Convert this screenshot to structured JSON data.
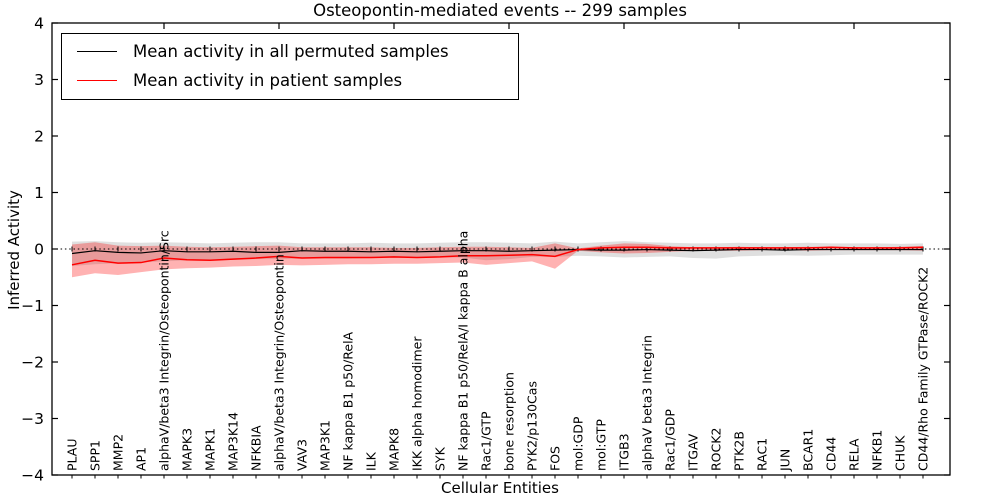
{
  "title": "Osteopontin-mediated events -- 299 samples",
  "axes": {
    "ylabel": "Inferred Activity",
    "xlabel": "Cellular Entities",
    "yticks": [
      4,
      3,
      2,
      1,
      0,
      -1,
      -2,
      -3,
      -4
    ],
    "ylim": [
      -4,
      4
    ],
    "zero_line_style": "dotted"
  },
  "legend": {
    "position": "upper-left",
    "items": [
      {
        "label": "Mean activity in all permuted samples",
        "color": "#000000"
      },
      {
        "label": "Mean activity in patient samples",
        "color": "#ff0000"
      }
    ]
  },
  "colors": {
    "permuted_line": "#000000",
    "patient_line": "#ff0000",
    "permuted_band": "#808080",
    "patient_band": "#ff0000",
    "axis": "#000000",
    "background": "#ffffff"
  },
  "chart_data": {
    "type": "line",
    "title": "Osteopontin-mediated events -- 299 samples",
    "xlabel": "Cellular Entities",
    "ylabel": "Inferred Activity",
    "ylim": [
      -4,
      4
    ],
    "grid": false,
    "legend_position": "upper-left",
    "categories": [
      "PLAU",
      "SPP1",
      "MMP2",
      "AP1",
      "alphaV/beta3 Integrin/Osteopontin/Src",
      "MAPK3",
      "MAPK1",
      "MAP3K14",
      "NFKBIA",
      "alphaV/beta3 Integrin/Osteopontin",
      "VAV3",
      "MAP3K1",
      "NF kappa B1 p50/RelA",
      "ILK",
      "MAPK8",
      "IKK alpha homodimer",
      "SYK",
      "NF kappa B1 p50/RelA/I kappa B alpha",
      "Rac1/GTP",
      "bone resorption",
      "PYK2/p130Cas",
      "FOS",
      "mol:GDP",
      "mol:GTP",
      "ITGB3",
      "alphaV beta3 Integrin",
      "Rac1/GDP",
      "ITGAV",
      "ROCK2",
      "PTK2B",
      "RAC1",
      "JUN",
      "BCAR1",
      "CD44",
      "RELA",
      "NFKB1",
      "CHUK",
      "CD44/Rho Family GTPase/ROCK2"
    ],
    "series": [
      {
        "name": "Mean activity in all permuted samples",
        "color": "#000000",
        "values": [
          -0.08,
          -0.03,
          -0.06,
          -0.07,
          -0.03,
          -0.05,
          -0.05,
          -0.04,
          -0.06,
          -0.06,
          -0.03,
          -0.04,
          -0.04,
          -0.05,
          -0.04,
          -0.05,
          -0.04,
          -0.03,
          -0.03,
          -0.04,
          -0.03,
          -0.02,
          -0.01,
          -0.02,
          -0.02,
          -0.01,
          -0.02,
          -0.03,
          -0.02,
          -0.01,
          -0.01,
          -0.02,
          -0.01,
          -0.01,
          -0.01,
          -0.01,
          -0.01,
          -0.01
        ]
      },
      {
        "name": "Mean activity in patient samples",
        "color": "#ff0000",
        "values": [
          -0.28,
          -0.2,
          -0.25,
          -0.24,
          -0.16,
          -0.19,
          -0.2,
          -0.18,
          -0.16,
          -0.13,
          -0.16,
          -0.15,
          -0.15,
          -0.15,
          -0.14,
          -0.15,
          -0.14,
          -0.12,
          -0.12,
          -0.11,
          -0.1,
          -0.13,
          -0.01,
          0.02,
          0.03,
          0.03,
          0.02,
          0.02,
          0.02,
          0.02,
          0.02,
          0.02,
          0.02,
          0.03,
          0.02,
          0.02,
          0.02,
          0.03
        ]
      }
    ],
    "bands": [
      {
        "name": "permuted-samples-band",
        "color": "#808080",
        "opacity": 0.25,
        "upper": [
          0.13,
          0.14,
          0.12,
          0.11,
          0.12,
          0.11,
          0.1,
          0.11,
          0.12,
          0.12,
          0.1,
          0.1,
          0.1,
          0.11,
          0.1,
          0.1,
          0.11,
          0.12,
          0.12,
          0.11,
          0.1,
          0.13,
          0.1,
          0.12,
          0.14,
          0.12,
          0.11,
          0.1,
          0.1,
          0.11,
          0.1,
          0.1,
          0.11,
          0.1,
          0.1,
          0.1,
          0.09,
          0.1
        ],
        "lower": [
          -0.3,
          -0.27,
          -0.25,
          -0.24,
          -0.22,
          -0.2,
          -0.2,
          -0.19,
          -0.18,
          -0.18,
          -0.17,
          -0.17,
          -0.17,
          -0.16,
          -0.16,
          -0.16,
          -0.15,
          -0.15,
          -0.2,
          -0.18,
          -0.14,
          -0.14,
          -0.12,
          -0.13,
          -0.15,
          -0.14,
          -0.13,
          -0.16,
          -0.17,
          -0.13,
          -0.12,
          -0.11,
          -0.12,
          -0.11,
          -0.1,
          -0.1,
          -0.1,
          -0.1
        ]
      },
      {
        "name": "patient-samples-band",
        "color": "#ff0000",
        "opacity": 0.3,
        "upper": [
          0.08,
          0.12,
          0.06,
          0.05,
          0.06,
          0.04,
          0.03,
          0.04,
          0.05,
          0.06,
          0.03,
          0.03,
          0.03,
          0.03,
          0.02,
          0.02,
          0.03,
          0.04,
          0.04,
          0.03,
          0.02,
          0.1,
          0.01,
          0.06,
          0.1,
          0.09,
          0.05,
          0.03,
          0.03,
          0.04,
          0.03,
          0.03,
          0.04,
          0.03,
          0.03,
          0.03,
          0.04,
          0.05
        ],
        "lower": [
          -0.5,
          -0.43,
          -0.46,
          -0.41,
          -0.36,
          -0.34,
          -0.33,
          -0.31,
          -0.3,
          -0.28,
          -0.29,
          -0.28,
          -0.27,
          -0.27,
          -0.26,
          -0.26,
          -0.25,
          -0.24,
          -0.28,
          -0.25,
          -0.22,
          -0.35,
          -0.03,
          -0.06,
          -0.08,
          -0.07,
          -0.05,
          -0.03,
          -0.03,
          -0.03,
          -0.02,
          -0.02,
          -0.03,
          -0.02,
          -0.02,
          -0.02,
          -0.02,
          -0.03
        ]
      }
    ],
    "top_axis_tick_positions_1based": [
      5,
      10,
      15,
      20,
      25,
      30,
      35
    ]
  }
}
